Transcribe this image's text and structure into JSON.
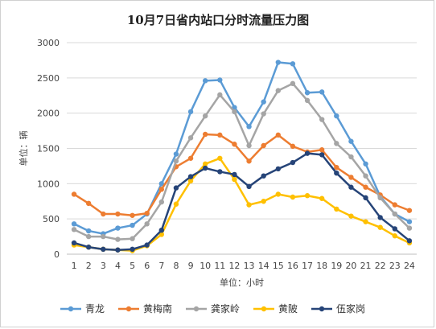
{
  "chart_data": {
    "type": "line",
    "title": "10月7日省内站口分时流量压力图",
    "xlabel": "单位：小时",
    "ylabel": "单位：辆",
    "x": [
      1,
      2,
      3,
      4,
      5,
      6,
      7,
      8,
      9,
      10,
      11,
      12,
      13,
      14,
      15,
      16,
      17,
      18,
      19,
      20,
      21,
      22,
      23,
      24
    ],
    "ylim": [
      0,
      3000
    ],
    "yticks": [
      0,
      500,
      1000,
      1500,
      2000,
      2500,
      3000
    ],
    "grid": "horizontal",
    "legend": "bottom",
    "series": [
      {
        "name": "青龙",
        "color": "#5b9bd5",
        "values": [
          430,
          330,
          290,
          370,
          410,
          570,
          1000,
          1420,
          2020,
          2460,
          2470,
          2080,
          1810,
          2160,
          2720,
          2700,
          2290,
          2300,
          1960,
          1600,
          1280,
          820,
          570,
          460
        ]
      },
      {
        "name": "黄梅南",
        "color": "#ed7d31",
        "values": [
          850,
          720,
          570,
          570,
          550,
          580,
          920,
          1240,
          1360,
          1700,
          1690,
          1560,
          1320,
          1540,
          1690,
          1530,
          1450,
          1480,
          1230,
          1090,
          950,
          840,
          700,
          620
        ]
      },
      {
        "name": "龚家岭",
        "color": "#a5a5a5",
        "values": [
          350,
          250,
          250,
          210,
          220,
          430,
          740,
          1320,
          1650,
          1960,
          2260,
          2020,
          1540,
          1990,
          2320,
          2420,
          2180,
          1910,
          1570,
          1380,
          1110,
          800,
          570,
          370
        ]
      },
      {
        "name": "黄陂",
        "color": "#ffc000",
        "values": [
          130,
          100,
          70,
          60,
          50,
          120,
          280,
          710,
          1040,
          1280,
          1360,
          1060,
          700,
          750,
          850,
          810,
          830,
          790,
          640,
          540,
          460,
          380,
          260,
          160
        ]
      },
      {
        "name": "伍家岗",
        "color": "#264478",
        "values": [
          160,
          100,
          70,
          60,
          70,
          130,
          340,
          940,
          1100,
          1220,
          1170,
          1130,
          960,
          1110,
          1210,
          1300,
          1430,
          1410,
          1150,
          950,
          800,
          520,
          360,
          190
        ]
      }
    ]
  }
}
